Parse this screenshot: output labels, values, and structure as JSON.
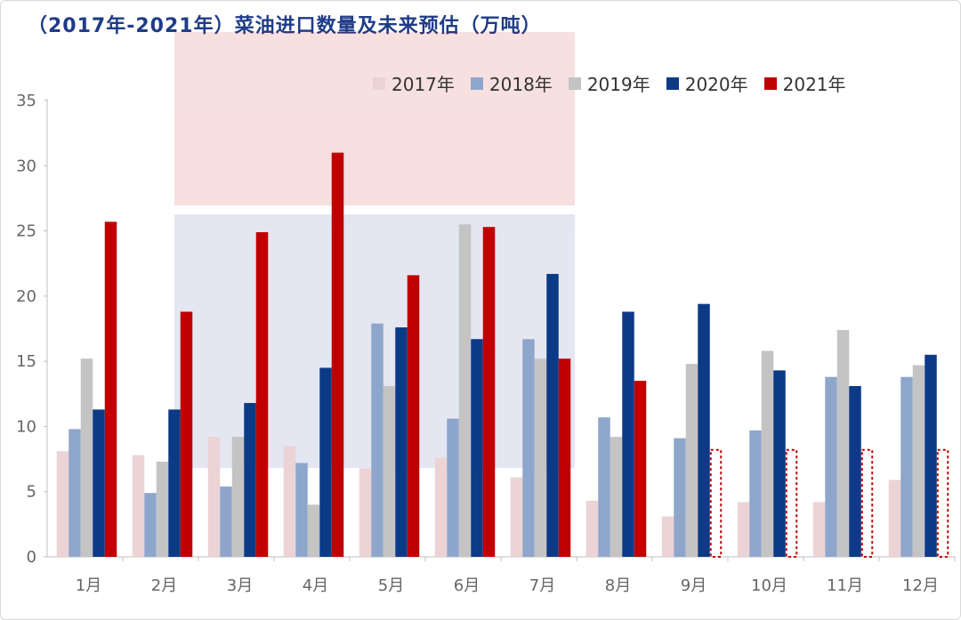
{
  "title": "（2017年-2021年）菜油进口数量及未来预估（万吨）",
  "chart_data": {
    "type": "bar",
    "title": "（2017年-2021年）菜油进口数量及未来预估（万吨）",
    "categories": [
      "1月",
      "2月",
      "3月",
      "4月",
      "5月",
      "6月",
      "7月",
      "8月",
      "9月",
      "10月",
      "11月",
      "12月"
    ],
    "ylim": [
      0,
      35
    ],
    "yticks": [
      0,
      5,
      10,
      15,
      20,
      25,
      30,
      35
    ],
    "grid": false,
    "legend_position": "top-right",
    "series": [
      {
        "name": "2017年",
        "color": "#ecd3d5",
        "values": [
          8.1,
          7.8,
          9.2,
          8.5,
          6.8,
          7.6,
          6.1,
          4.3,
          3.1,
          4.2,
          4.2,
          5.9
        ]
      },
      {
        "name": "2018年",
        "color": "#8fa6cc",
        "values": [
          9.8,
          4.9,
          5.4,
          7.2,
          17.9,
          10.6,
          16.7,
          10.7,
          9.1,
          9.7,
          13.8,
          13.8
        ]
      },
      {
        "name": "2019年",
        "color": "#c4c4c4",
        "values": [
          15.2,
          7.3,
          9.2,
          4.0,
          13.1,
          25.5,
          15.2,
          9.2,
          14.8,
          15.8,
          17.4,
          14.7
        ]
      },
      {
        "name": "2020年",
        "color": "#0d3a87",
        "values": [
          11.3,
          11.3,
          11.8,
          14.5,
          17.6,
          16.7,
          21.7,
          18.8,
          19.4,
          14.3,
          13.1,
          15.5
        ]
      },
      {
        "name": "2021年",
        "color": "#c00000",
        "values": [
          25.7,
          18.8,
          24.9,
          31.0,
          21.6,
          25.3,
          15.2,
          13.5,
          8.2,
          8.2,
          8.2,
          8.2
        ],
        "estimated_from_index": 8
      }
    ]
  }
}
